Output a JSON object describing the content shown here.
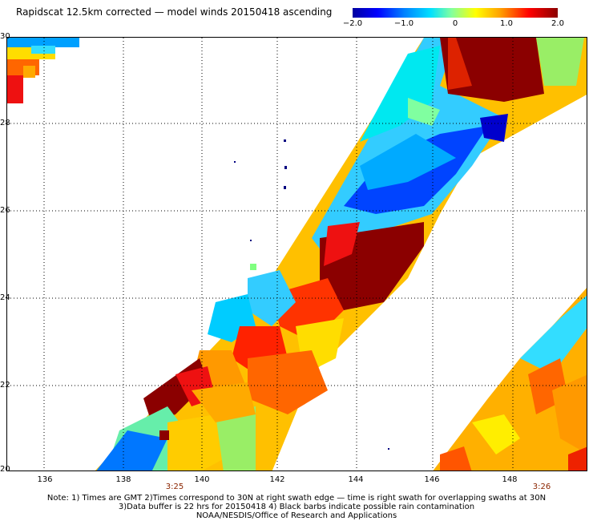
{
  "title": "Rapidscat 12.5km corrected — model winds 20150418 ascending",
  "colorbar": {
    "ticks": [
      "−2.0",
      "−1.0",
      "0",
      "1.0",
      "2.0"
    ],
    "stops": [
      "#0000a0",
      "#0000ff",
      "#0080ff",
      "#00e0ff",
      "#80ffa0",
      "#ffff00",
      "#ffa000",
      "#ff0000",
      "#8b0000"
    ]
  },
  "map": {
    "lat_labels": [
      "30",
      "28",
      "26",
      "24",
      "22",
      "20"
    ],
    "lon_labels": [
      "136",
      "138",
      "140",
      "142",
      "144",
      "146",
      "148"
    ],
    "time_labels": [
      "3:25",
      "3:26"
    ],
    "lat_range": [
      20,
      30
    ],
    "lon_range": [
      135.5,
      149.5
    ]
  },
  "notes": [
    "Note: 1) Times are GMT 2)Times correspond to 30N at right swath edge — time is right swath for overlapping swaths at 30N",
    "3)Data buffer is 22 hrs for 20150418 4) Black barbs indicate possible rain contamination",
    "NOAA/NESDIS/Office of Research and Applications"
  ]
}
